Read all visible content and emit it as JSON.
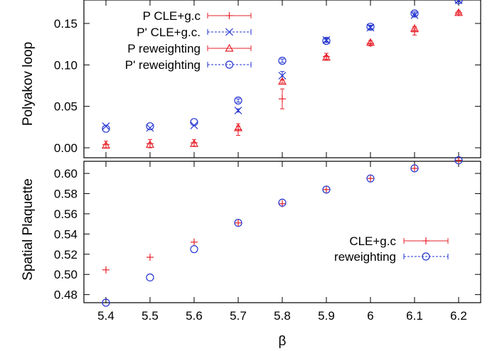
{
  "chart_data": [
    {
      "panel": "top",
      "type": "scatter",
      "ylabel": "Polyakov loop",
      "xlim": [
        5.35,
        6.25
      ],
      "ylim": [
        -0.012,
        0.18
      ],
      "yticks": [
        "0.00",
        "0.05",
        "0.10",
        "0.15"
      ],
      "ytick_values": [
        0.0,
        0.05,
        0.1,
        0.15
      ],
      "legend_position": "top-left",
      "series": [
        {
          "name": "P CLE+g.c",
          "marker": "plus",
          "color": "#e8202a",
          "x": [
            5.4,
            5.5,
            5.6,
            5.7,
            5.8,
            5.9,
            6.0,
            6.1,
            6.2
          ],
          "y": [
            0.004,
            0.005,
            0.006,
            0.022,
            0.059,
            0.11,
            0.126,
            0.14,
            0.163
          ],
          "err": [
            0.004,
            0.005,
            0.004,
            0.007,
            0.012,
            0.004,
            0.003,
            0.004,
            0.002
          ]
        },
        {
          "name": "P' CLE+g.c.",
          "marker": "cross",
          "color": "#2233d0",
          "x": [
            5.4,
            5.5,
            5.6,
            5.7,
            5.8,
            5.9,
            6.0,
            6.1,
            6.2
          ],
          "y": [
            0.026,
            0.024,
            0.027,
            0.045,
            0.087,
            0.13,
            0.145,
            0.16,
            0.178
          ],
          "err": [
            0.001,
            0.001,
            0.001,
            0.002,
            0.005,
            0.002,
            0.002,
            0.002,
            0.002
          ]
        },
        {
          "name": "P reweighting",
          "marker": "triangle",
          "color": "#e8202a",
          "x": [
            5.4,
            5.5,
            5.6,
            5.7,
            5.8,
            5.9,
            6.0,
            6.1,
            6.2
          ],
          "y": [
            0.003,
            0.004,
            0.005,
            0.024,
            0.08,
            0.109,
            0.127,
            0.144,
            0.163
          ],
          "err": [
            0.001,
            0.001,
            0.001,
            0.002,
            0.002,
            0.002,
            0.002,
            0.002,
            0.002
          ]
        },
        {
          "name": "P' reweighting",
          "marker": "circle",
          "color": "#2233d0",
          "x": [
            5.4,
            5.5,
            5.6,
            5.7,
            5.8,
            5.9,
            6.0,
            6.1,
            6.2
          ],
          "y": [
            0.023,
            0.026,
            0.031,
            0.057,
            0.105,
            0.129,
            0.146,
            0.162,
            0.178
          ],
          "err": [
            0.001,
            0.001,
            0.001,
            0.002,
            0.002,
            0.002,
            0.002,
            0.002,
            0.002
          ]
        }
      ]
    },
    {
      "panel": "bottom",
      "type": "scatter",
      "xlabel": "β",
      "ylabel": "Spatial Plaquette",
      "xlim": [
        5.35,
        6.25
      ],
      "ylim": [
        0.472,
        0.612
      ],
      "xticks": [
        "5.4",
        "5.5",
        "5.6",
        "5.7",
        "5.8",
        "5.9",
        "6",
        "6.1",
        "6.2"
      ],
      "xtick_values": [
        5.4,
        5.5,
        5.6,
        5.7,
        5.8,
        5.9,
        6.0,
        6.1,
        6.2
      ],
      "yticks": [
        "0.48",
        "0.50",
        "0.52",
        "0.54",
        "0.56",
        "0.58",
        "0.60"
      ],
      "ytick_values": [
        0.48,
        0.5,
        0.52,
        0.54,
        0.56,
        0.58,
        0.6
      ],
      "legend_position": "center-right",
      "series": [
        {
          "name": "CLE+g.c",
          "marker": "plus",
          "color": "#e8202a",
          "x": [
            5.4,
            5.5,
            5.6,
            5.7,
            5.8,
            5.9,
            6.0,
            6.1,
            6.2
          ],
          "y": [
            0.5045,
            0.517,
            0.532,
            0.551,
            0.57,
            0.584,
            0.595,
            0.605,
            0.613
          ],
          "err": [
            0.0005,
            0.0005,
            0.0005,
            0.0005,
            0.0005,
            0.0005,
            0.0005,
            0.0005,
            0.0005
          ]
        },
        {
          "name": "reweighting",
          "marker": "circle",
          "color": "#2233d0",
          "x": [
            5.4,
            5.5,
            5.6,
            5.7,
            5.8,
            5.9,
            6.0,
            6.1,
            6.2
          ],
          "y": [
            0.472,
            0.497,
            0.525,
            0.551,
            0.571,
            0.584,
            0.595,
            0.605,
            0.613
          ],
          "err": [
            0.0005,
            0.0005,
            0.0005,
            0.0005,
            0.0005,
            0.0005,
            0.0005,
            0.0005,
            0.0005
          ]
        }
      ]
    }
  ]
}
